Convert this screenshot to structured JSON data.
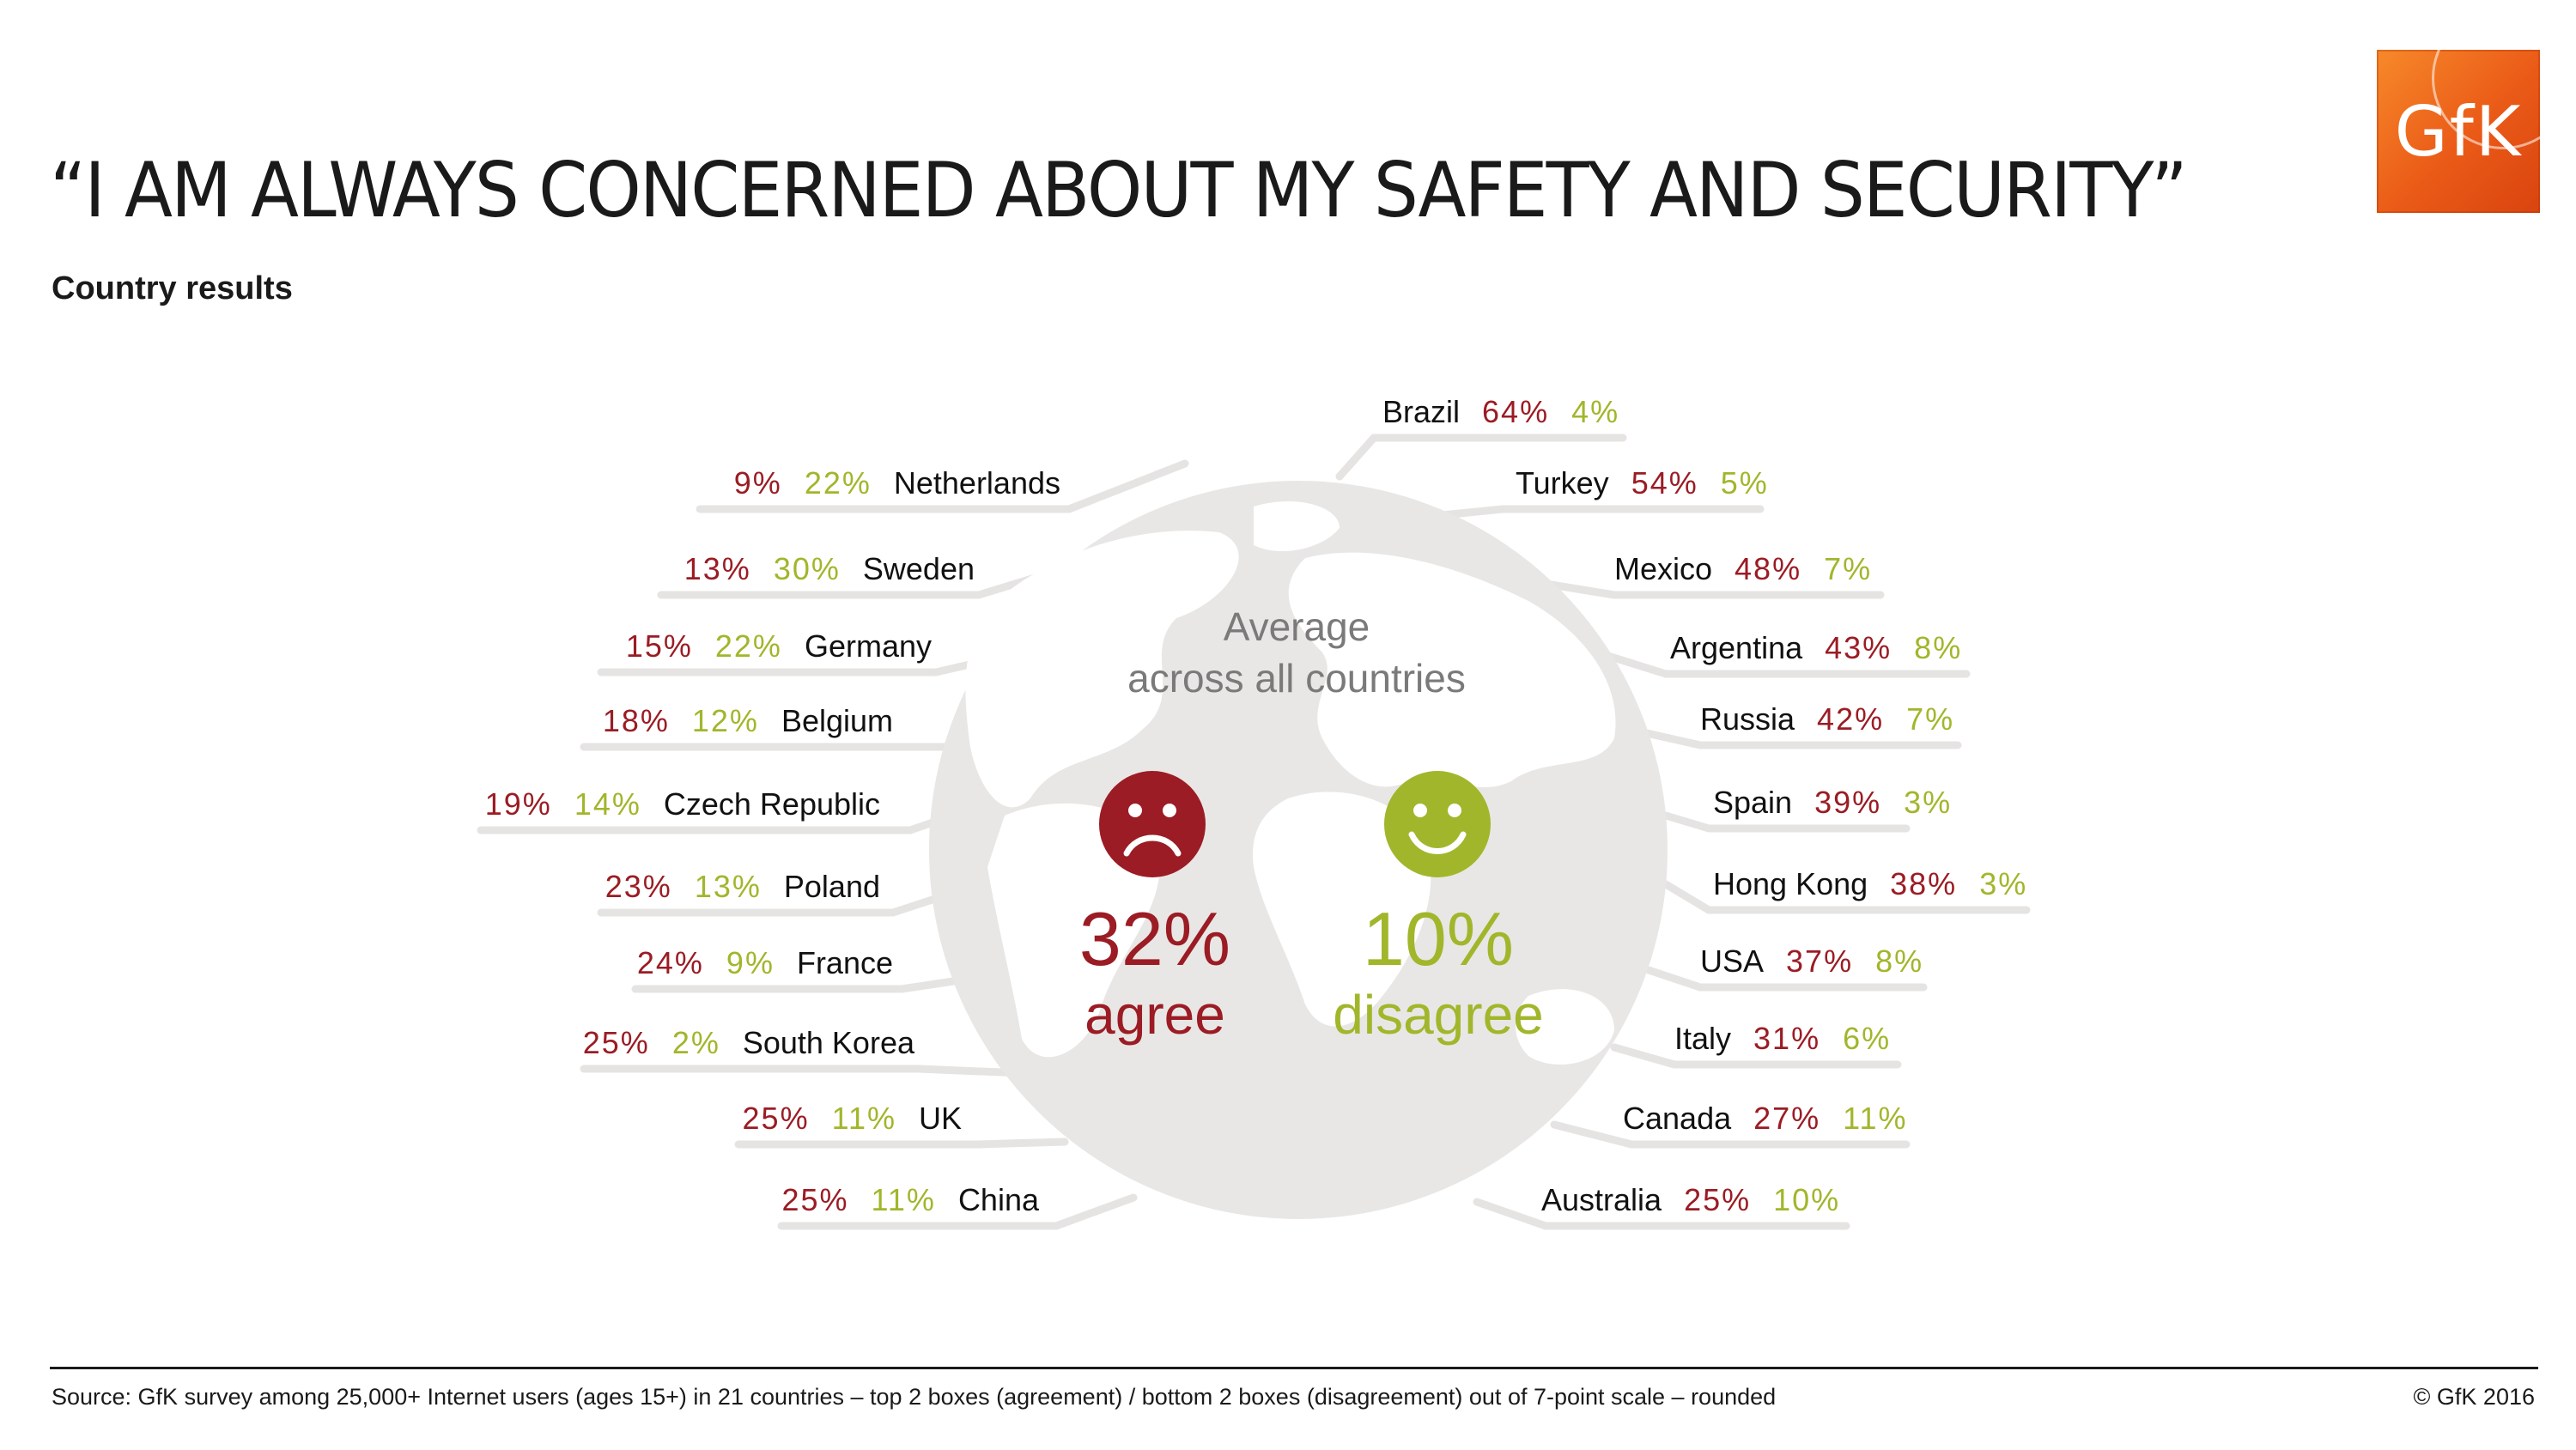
{
  "header": {
    "title": "“I AM ALWAYS CONCERNED ABOUT MY SAFETY AND SECURITY”",
    "subtitle": "Country results",
    "logo_text": "GfK"
  },
  "average": {
    "label_line1": "Average",
    "label_line2": "across all countries",
    "agree_value": "32%",
    "agree_label": "agree",
    "disagree_value": "10%",
    "disagree_label": "disagree",
    "agree_icon": "sad-face-icon",
    "disagree_icon": "smiley-face-icon"
  },
  "colors": {
    "agree": "#9b1c24",
    "disagree": "#a2b62b",
    "globe": "#e9e7e5",
    "leader": "#e6e4e2"
  },
  "footer": {
    "source": "Source: GfK survey among 25,000+ Internet users (ages 15+) in 21 countries – top 2 boxes (agreement) / bottom 2 boxes (disagreement) out of 7-point scale – rounded",
    "copyright": "© GfK 2016"
  },
  "chart_data": {
    "type": "table",
    "title": "“I AM ALWAYS CONCERNED ABOUT MY SAFETY AND SECURITY”",
    "subtitle": "Country results",
    "columns": [
      "country",
      "agree",
      "disagree"
    ],
    "average": {
      "agree": 32,
      "disagree": 10
    },
    "left": [
      {
        "country": "Netherlands",
        "agree": 9,
        "disagree": 22
      },
      {
        "country": "Sweden",
        "agree": 13,
        "disagree": 30
      },
      {
        "country": "Germany",
        "agree": 15,
        "disagree": 22
      },
      {
        "country": "Belgium",
        "agree": 18,
        "disagree": 12
      },
      {
        "country": "Czech Republic",
        "agree": 19,
        "disagree": 14
      },
      {
        "country": "Poland",
        "agree": 23,
        "disagree": 13
      },
      {
        "country": "France",
        "agree": 24,
        "disagree": 9
      },
      {
        "country": "South Korea",
        "agree": 25,
        "disagree": 2
      },
      {
        "country": "UK",
        "agree": 25,
        "disagree": 11
      },
      {
        "country": "China",
        "agree": 25,
        "disagree": 11
      }
    ],
    "right": [
      {
        "country": "Brazil",
        "agree": 64,
        "disagree": 4
      },
      {
        "country": "Turkey",
        "agree": 54,
        "disagree": 5
      },
      {
        "country": "Mexico",
        "agree": 48,
        "disagree": 7
      },
      {
        "country": "Argentina",
        "agree": 43,
        "disagree": 8
      },
      {
        "country": "Russia",
        "agree": 42,
        "disagree": 7
      },
      {
        "country": "Spain",
        "agree": 39,
        "disagree": 3
      },
      {
        "country": "Hong Kong",
        "agree": 38,
        "disagree": 3
      },
      {
        "country": "USA",
        "agree": 37,
        "disagree": 8
      },
      {
        "country": "Italy",
        "agree": 31,
        "disagree": 6
      },
      {
        "country": "Canada",
        "agree": 27,
        "disagree": 11
      },
      {
        "country": "Australia",
        "agree": 25,
        "disagree": 10
      }
    ]
  }
}
